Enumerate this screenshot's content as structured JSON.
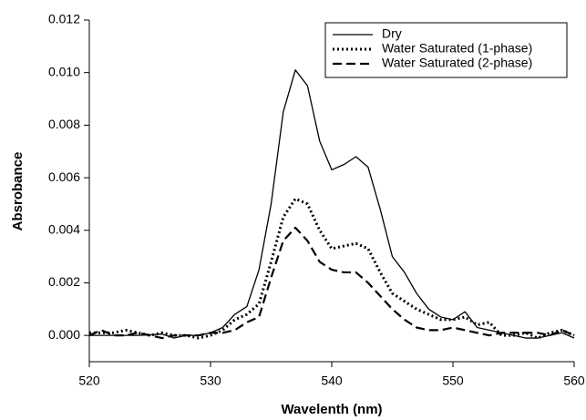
{
  "chart_data": {
    "type": "line",
    "xlabel": "Wavelenth (nm)",
    "ylabel": "Absrobance",
    "x": [
      520,
      521,
      522,
      523,
      524,
      525,
      526,
      527,
      528,
      529,
      530,
      531,
      532,
      533,
      534,
      535,
      536,
      537,
      538,
      539,
      540,
      541,
      542,
      543,
      544,
      545,
      546,
      547,
      548,
      549,
      550,
      551,
      552,
      553,
      554,
      555,
      556,
      557,
      558,
      559,
      560
    ],
    "series": [
      {
        "name": "Dry",
        "color": "#000000",
        "dash": "solid",
        "values": [
          0,
          0,
          0,
          0,
          0,
          2e-05,
          5e-05,
          -0.0001,
          0,
          0,
          0.0001,
          0.0003,
          0.0008,
          0.0011,
          0.0025,
          0.005,
          0.0085,
          0.0101,
          0.0095,
          0.0074,
          0.0063,
          0.0065,
          0.0068,
          0.0064,
          0.0048,
          0.003,
          0.0024,
          0.0016,
          0.001,
          0.0007,
          0.0006,
          0.0009,
          0.0003,
          0.0002,
          0.0001,
          0,
          -0.0001,
          -0.0001,
          0,
          0.0001,
          -0.0001
        ]
      },
      {
        "name": "Water Saturated (1-phase)",
        "color": "#000000",
        "dash": "dotted",
        "values": [
          0.0001,
          0.0001,
          0.0001,
          0.0002,
          0.0001,
          0,
          0.0001,
          0,
          0,
          -0.0001,
          0,
          0.0002,
          0.0006,
          0.0008,
          0.0012,
          0.0028,
          0.0045,
          0.0052,
          0.005,
          0.004,
          0.0033,
          0.0034,
          0.0035,
          0.0033,
          0.0024,
          0.0016,
          0.0013,
          0.001,
          0.0008,
          0.0006,
          0.0006,
          0.0007,
          0.0004,
          0.0005,
          0,
          0,
          0.0001,
          -0.0001,
          0.0001,
          0.0002,
          0
        ]
      },
      {
        "name": "Water Saturated (2-phase)",
        "color": "#000000",
        "dash": "dashed",
        "values": [
          0,
          0.0002,
          0,
          0,
          0.0001,
          0,
          -0.0001,
          0,
          0,
          0,
          0.0001,
          0.0001,
          0.0002,
          0.0005,
          0.0007,
          0.0022,
          0.0036,
          0.0041,
          0.0036,
          0.0028,
          0.0025,
          0.0024,
          0.0024,
          0.002,
          0.0015,
          0.001,
          0.0006,
          0.0003,
          0.0002,
          0.0002,
          0.0003,
          0.0002,
          0.0001,
          0,
          0.0001,
          0.0001,
          0.0001,
          0.0001,
          0,
          0.0002,
          0
        ]
      }
    ],
    "xlim": [
      520,
      560
    ],
    "xticks": [
      520,
      530,
      540,
      550,
      560
    ],
    "ylim": [
      -0.001,
      0.012
    ],
    "yticks": [
      {
        "value": 0,
        "label": "0.000"
      },
      {
        "value": 0.002,
        "label": "0.002"
      },
      {
        "value": 0.004,
        "label": "0.004"
      },
      {
        "value": 0.006,
        "label": "0.006"
      },
      {
        "value": 0.008,
        "label": "0.008"
      },
      {
        "value": 0.01,
        "label": "0.010"
      },
      {
        "value": 0.012,
        "label": "0.012"
      }
    ],
    "legend": "upper-right",
    "grid": false
  }
}
